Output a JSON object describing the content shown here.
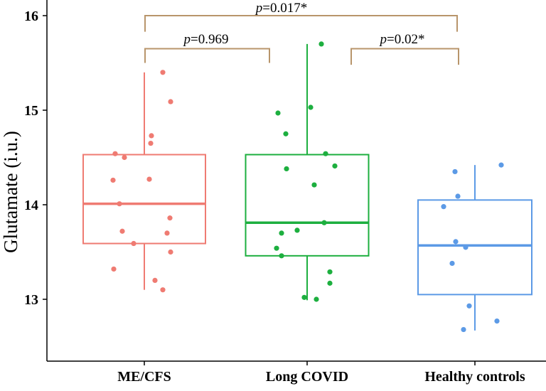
{
  "chart_data": {
    "type": "box",
    "title": "",
    "xlabel": "",
    "ylabel": "Glutamate (i.u.)",
    "ylim": [
      12.35,
      16.17
    ],
    "yticks": [
      13,
      14,
      15,
      16
    ],
    "grid": false,
    "categories": [
      "ME/CFS",
      "Long COVID",
      "Healthy controls"
    ],
    "colors": [
      "#EF7B72",
      "#1DAF3F",
      "#5C9AE6"
    ],
    "boxes": [
      {
        "q1": 13.59,
        "median": 14.01,
        "q3": 14.53,
        "whisker_low": 13.1,
        "whisker_high": 15.4
      },
      {
        "q1": 13.46,
        "median": 13.81,
        "q3": 14.53,
        "whisker_low": 12.99,
        "whisker_high": 15.7
      },
      {
        "q1": 13.05,
        "median": 13.57,
        "q3": 14.05,
        "whisker_low": 12.67,
        "whisker_high": 14.42
      }
    ],
    "points": [
      [
        15.4,
        15.09,
        14.73,
        14.65,
        14.54,
        14.5,
        14.26,
        14.27,
        14.01,
        13.86,
        13.72,
        13.7,
        13.59,
        13.5,
        13.32,
        13.2,
        13.1
      ],
      [
        15.7,
        14.97,
        15.03,
        14.75,
        14.54,
        14.38,
        14.41,
        14.21,
        13.81,
        13.73,
        13.7,
        13.54,
        13.46,
        13.29,
        13.17,
        13.02,
        13.0
      ],
      [
        14.35,
        14.42,
        14.09,
        13.98,
        13.61,
        13.55,
        13.38,
        12.93,
        12.77,
        12.68
      ]
    ],
    "comparisons": [
      {
        "groups": [
          "ME/CFS",
          "Healthy controls"
        ],
        "label_p": "p",
        "label_rest": "=0.017*"
      },
      {
        "groups": [
          "ME/CFS",
          "Long COVID"
        ],
        "label_p": "p",
        "label_rest": "=0.969"
      },
      {
        "groups": [
          "Long COVID",
          "Healthy controls"
        ],
        "label_p": "p",
        "label_rest": "=0.02*"
      }
    ],
    "bracket_color": "#B8956B"
  }
}
